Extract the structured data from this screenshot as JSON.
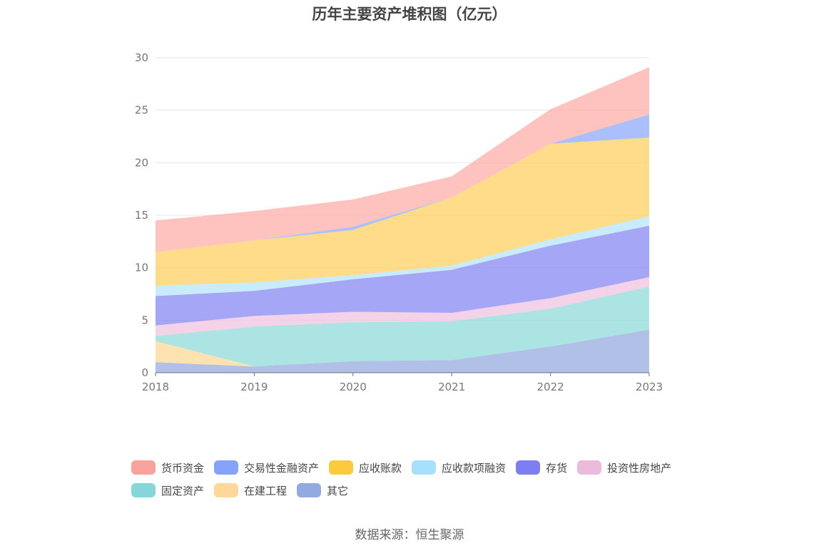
{
  "chart_data": {
    "type": "area",
    "stacked": true,
    "title": "历年主要资产堆积图（亿元）",
    "x": [
      "2018",
      "2019",
      "2020",
      "2021",
      "2022",
      "2023"
    ],
    "ylim": [
      0,
      30
    ],
    "yticks": [
      "0",
      "5",
      "10",
      "15",
      "20",
      "25",
      "30"
    ],
    "grid": true,
    "legend_position": "bottom",
    "series": [
      {
        "name": "其它",
        "color": "#91a7dc",
        "values": [
          1.0,
          0.6,
          1.1,
          1.2,
          2.5,
          4.1
        ]
      },
      {
        "name": "在建工程",
        "color": "#fdd891",
        "values": [
          2.0,
          0.0,
          0.0,
          0.0,
          0.0,
          0.0
        ]
      },
      {
        "name": "固定资产",
        "color": "#8cd9da",
        "values": [
          0.5,
          3.8,
          3.7,
          3.7,
          3.6,
          4.1
        ]
      },
      {
        "name": "投资性房地产",
        "color": "#f0c0de",
        "values": [
          1.0,
          1.0,
          1.0,
          0.8,
          1.0,
          0.9
        ]
      },
      {
        "name": "存货",
        "color": "#8283f3",
        "values": [
          2.8,
          2.4,
          3.1,
          4.1,
          5.0,
          4.9
        ]
      },
      {
        "name": "应收款项融资",
        "color": "#b3e5f9",
        "values": [
          1.0,
          0.8,
          0.4,
          0.4,
          0.6,
          0.9
        ]
      },
      {
        "name": "应收账款",
        "color": "#fece5b",
        "values": [
          3.2,
          4.0,
          4.3,
          6.5,
          9.1,
          7.5
        ]
      },
      {
        "name": "交易性金融资产",
        "color": "#8aa6fb",
        "values": [
          0.0,
          0.0,
          0.3,
          0.0,
          0.0,
          2.2
        ]
      },
      {
        "name": "货币资金",
        "color": "#fdaca6",
        "values": [
          3.0,
          2.8,
          2.6,
          2.0,
          3.3,
          4.5
        ]
      }
    ]
  },
  "legend": {
    "row1": [
      {
        "label": "货币资金",
        "color": "#f8a49d"
      },
      {
        "label": "交易性金融资产",
        "color": "#85a3fa"
      },
      {
        "label": "应收账款",
        "color": "#fdc93d"
      },
      {
        "label": "应收款项融资",
        "color": "#a7e0fa"
      },
      {
        "label": "存货",
        "color": "#7e7df2"
      },
      {
        "label": "投资性房地产",
        "color": "#ebbbdb"
      }
    ],
    "row2": [
      {
        "label": "固定资产",
        "color": "#85d6d8"
      },
      {
        "label": "在建工程",
        "color": "#fdd89a"
      },
      {
        "label": "其它",
        "color": "#92aadf"
      }
    ]
  },
  "source": "数据来源：恒生聚源"
}
